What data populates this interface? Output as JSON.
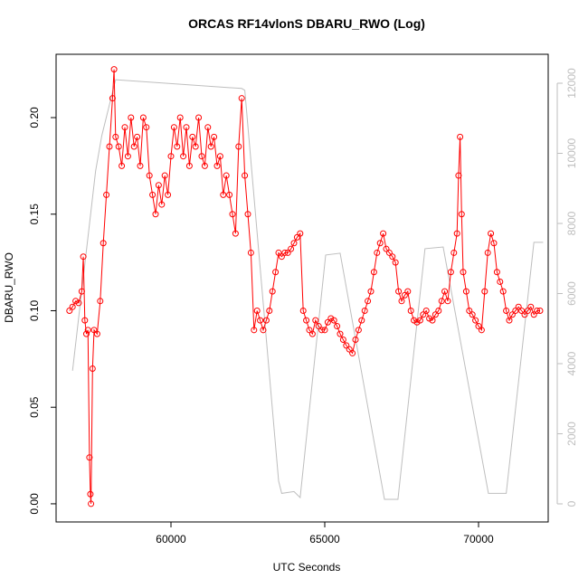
{
  "chart_data": {
    "type": "line",
    "title": "ORCAS RF14vlonS DBARU_RWO (Log)",
    "x_label": "UTC Seconds",
    "y_label": "DBARU_RWO",
    "xlim": [
      56265,
      72265
    ],
    "xticks": [
      60000,
      65000,
      70000
    ],
    "ylim": [
      -0.0094,
      0.2328
    ],
    "yticks": [
      {
        "value": 0,
        "label": "0.00"
      },
      {
        "value": 0.05,
        "label": "0.05"
      },
      {
        "value": 0.1,
        "label": "0.10"
      },
      {
        "value": 0.15,
        "label": "0.15"
      },
      {
        "value": 0.2,
        "label": "0.20"
      }
    ],
    "y2lim": [
      -516,
      12826
    ],
    "y2ticks": [
      0,
      2000,
      4000,
      6000,
      8000,
      10000,
      12000
    ],
    "series": [
      {
        "color": "#bebebe",
        "axis": "y2",
        "markers": false,
        "x": [
          56800,
          57550,
          57750,
          58200,
          62300,
          62400,
          63500,
          63600,
          64000,
          64200,
          65030,
          65500,
          66940,
          67380,
          68260,
          68850,
          70320,
          70900,
          71800,
          72100
        ],
        "values": [
          3800,
          9500,
          10500,
          12100,
          11850,
          11800,
          650,
          300,
          350,
          180,
          7100,
          7150,
          130,
          130,
          7280,
          7330,
          300,
          300,
          7460,
          7460
        ]
      },
      {
        "color": "#ff0000",
        "markers": true,
        "x": [
          56700,
          56800,
          56900,
          57000,
          57100,
          57150,
          57200,
          57250,
          57300,
          57350,
          57380,
          57400,
          57450,
          57500,
          57600,
          57700,
          57800,
          57900,
          58000,
          58100,
          58150,
          58200,
          58300,
          58400,
          58500,
          58600,
          58700,
          58800,
          58900,
          59000,
          59100,
          59200,
          59300,
          59400,
          59500,
          59600,
          59700,
          59800,
          59900,
          60000,
          60100,
          60200,
          60300,
          60400,
          60500,
          60600,
          60700,
          60800,
          60900,
          61000,
          61100,
          61200,
          61300,
          61400,
          61500,
          61600,
          61700,
          61800,
          61900,
          62000,
          62100,
          62200,
          62300,
          62400,
          62500,
          62600,
          62700,
          62800,
          62900,
          63000,
          63100,
          63200,
          63300,
          63400,
          63500,
          63600,
          63700,
          63800,
          63900,
          64000,
          64100,
          64200,
          64300,
          64400,
          64500,
          64600,
          64700,
          64800,
          64900,
          65000,
          65100,
          65200,
          65300,
          65400,
          65500,
          65600,
          65700,
          65800,
          65900,
          66000,
          66100,
          66200,
          66300,
          66400,
          66500,
          66600,
          66700,
          66800,
          66900,
          67000,
          67100,
          67200,
          67300,
          67400,
          67500,
          67600,
          67700,
          67800,
          67900,
          68000,
          68100,
          68200,
          68300,
          68400,
          68500,
          68600,
          68700,
          68800,
          68900,
          69000,
          69100,
          69200,
          69300,
          69350,
          69400,
          69450,
          69500,
          69600,
          69700,
          69800,
          69900,
          70000,
          70100,
          70200,
          70300,
          70400,
          70500,
          70600,
          70700,
          70800,
          70900,
          71000,
          71100,
          71200,
          71300,
          71400,
          71500,
          71600,
          71700,
          71800,
          71900,
          72000
        ],
        "values": [
          0.1,
          0.102,
          0.105,
          0.104,
          0.11,
          0.128,
          0.095,
          0.088,
          0.09,
          0.024,
          0.005,
          0.0,
          0.07,
          0.09,
          0.088,
          0.105,
          0.135,
          0.16,
          0.185,
          0.21,
          0.225,
          0.19,
          0.185,
          0.175,
          0.195,
          0.18,
          0.2,
          0.185,
          0.19,
          0.175,
          0.2,
          0.195,
          0.17,
          0.16,
          0.15,
          0.165,
          0.155,
          0.17,
          0.16,
          0.18,
          0.195,
          0.185,
          0.2,
          0.18,
          0.195,
          0.175,
          0.19,
          0.185,
          0.2,
          0.18,
          0.175,
          0.195,
          0.185,
          0.19,
          0.175,
          0.18,
          0.16,
          0.17,
          0.16,
          0.15,
          0.14,
          0.185,
          0.21,
          0.17,
          0.15,
          0.13,
          0.09,
          0.1,
          0.095,
          0.09,
          0.095,
          0.1,
          0.11,
          0.12,
          0.13,
          0.128,
          0.13,
          0.13,
          0.132,
          0.135,
          0.138,
          0.14,
          0.1,
          0.095,
          0.09,
          0.088,
          0.095,
          0.092,
          0.09,
          0.09,
          0.094,
          0.096,
          0.095,
          0.092,
          0.088,
          0.085,
          0.082,
          0.08,
          0.078,
          0.085,
          0.09,
          0.095,
          0.1,
          0.105,
          0.11,
          0.12,
          0.13,
          0.135,
          0.14,
          0.132,
          0.13,
          0.128,
          0.125,
          0.11,
          0.105,
          0.108,
          0.11,
          0.1,
          0.095,
          0.094,
          0.095,
          0.098,
          0.1,
          0.096,
          0.095,
          0.098,
          0.1,
          0.105,
          0.11,
          0.105,
          0.12,
          0.13,
          0.14,
          0.17,
          0.19,
          0.15,
          0.12,
          0.11,
          0.1,
          0.098,
          0.095,
          0.092,
          0.09,
          0.11,
          0.13,
          0.14,
          0.135,
          0.12,
          0.115,
          0.11,
          0.1,
          0.095,
          0.098,
          0.1,
          0.102,
          0.1,
          0.098,
          0.1,
          0.102,
          0.098,
          0.1,
          0.1
        ]
      }
    ]
  }
}
